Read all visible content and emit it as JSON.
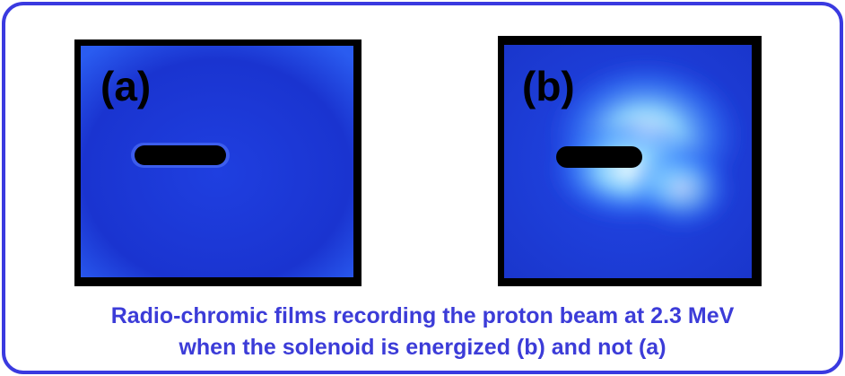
{
  "panels": [
    {
      "label": "(a)"
    },
    {
      "label": "(b)"
    }
  ],
  "caption": [
    "Radio-chromic films recording the proton beam at 2.3 MeV",
    "when the solenoid is energized (b) and not (a)"
  ]
}
